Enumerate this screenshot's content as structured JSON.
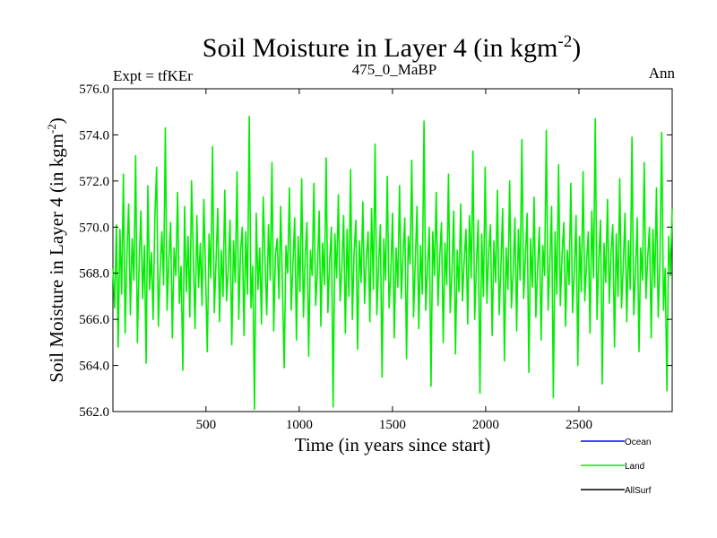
{
  "header": {
    "title_main": "Soil Moisture in Layer 4 (in kgm",
    "title_sup": "-2",
    "title_close": ")",
    "left_label": "Expt = tfKEr",
    "center_label": "475_0_MaBP",
    "right_label": "Ann"
  },
  "chart_data": {
    "type": "line",
    "xlabel": "Time (in years since start)",
    "ylabel_main": "Soil Moisture in Layer 4 (in kgm",
    "ylabel_sup": "-2",
    "ylabel_close": ")",
    "xlim": [
      1,
      3000
    ],
    "ylim": [
      562.0,
      576.0
    ],
    "x_ticks": [
      500,
      1000,
      1500,
      2000,
      2500
    ],
    "x_tick_labels": [
      "500",
      "1000",
      "1500",
      "2000",
      "2500"
    ],
    "y_ticks": [
      562,
      564,
      566,
      568,
      570,
      572,
      574,
      576
    ],
    "y_tick_labels": [
      "562.0",
      "564.0",
      "566.0",
      "568.0",
      "570.0",
      "572.0",
      "574.0",
      "576.0"
    ],
    "legend_position": "bottom-right, outside plot",
    "series": [
      {
        "name": "Ocean",
        "color": "#0000ff",
        "values": []
      },
      {
        "name": "Land",
        "color": "#00ee00",
        "x_start": 1,
        "x_end": 3000,
        "values": [
          568.2,
          566.5,
          570.1,
          564.8,
          569.9,
          567.1,
          572.3,
          565.4,
          568.8,
          571.0,
          566.2,
          569.5,
          567.7,
          573.1,
          565.0,
          568.4,
          570.7,
          566.9,
          569.2,
          564.1,
          571.8,
          567.3,
          568.9,
          566.0,
          570.4,
          572.6,
          565.7,
          568.1,
          569.8,
          567.5,
          574.3,
          566.4,
          568.6,
          570.2,
          565.2,
          569.1,
          567.9,
          571.5,
          566.7,
          568.3,
          563.8,
          570.9,
          567.2,
          569.6,
          566.1,
          572.0,
          568.7,
          565.6,
          570.5,
          567.4,
          569.3,
          566.6,
          571.2,
          568.0,
          564.6,
          569.7,
          567.8,
          573.5,
          566.3,
          568.5,
          570.8,
          565.9,
          569.0,
          567.0,
          571.6,
          566.8,
          568.2,
          570.3,
          564.9,
          569.4,
          567.6,
          572.4,
          566.0,
          568.9,
          570.0,
          565.3,
          569.8,
          567.1,
          574.8,
          566.5,
          568.3,
          562.1,
          570.6,
          567.3,
          569.1,
          565.8,
          571.3,
          568.6,
          566.2,
          570.1,
          567.7,
          572.8,
          565.5,
          568.8,
          569.5,
          566.9,
          570.9,
          567.4,
          563.9,
          569.2,
          568.0,
          571.7,
          566.4,
          568.4,
          570.4,
          565.1,
          569.6,
          567.2,
          572.1,
          566.1,
          568.7,
          570.2,
          564.4,
          569.0,
          567.9,
          571.9,
          566.6,
          568.1,
          570.7,
          565.7,
          569.3,
          567.5,
          573.0,
          566.3,
          568.5,
          570.0,
          562.2,
          569.7,
          567.8,
          571.4,
          566.8,
          568.2,
          570.5,
          565.4,
          569.9,
          567.0,
          572.5,
          566.0,
          568.9,
          570.3,
          564.7,
          569.4,
          567.6,
          571.1,
          566.7,
          568.6,
          569.8,
          565.9,
          570.8,
          567.3,
          573.6,
          566.2,
          568.3,
          570.1,
          563.5,
          569.5,
          567.7,
          572.2,
          566.5,
          568.0,
          570.6,
          565.2,
          569.1,
          567.4,
          571.8,
          566.9,
          568.8,
          570.4,
          564.3,
          569.6,
          568.4,
          572.9,
          566.1,
          568.5,
          570.9,
          565.6,
          569.2,
          567.1,
          574.6,
          566.4,
          568.2,
          570.0,
          563.1,
          569.8,
          567.9,
          571.5,
          566.6,
          568.7,
          570.2,
          565.0,
          569.3,
          567.5,
          572.3,
          566.3,
          568.1,
          570.7,
          564.5,
          569.0,
          567.2,
          571.0,
          566.8,
          568.6,
          569.9,
          565.8,
          570.5,
          567.8,
          573.3,
          566.0,
          568.4,
          570.3,
          562.8,
          569.7,
          567.0,
          572.6,
          566.7,
          568.9,
          570.1,
          565.3,
          569.4,
          567.6,
          571.6,
          566.2,
          568.3,
          570.8,
          564.2,
          569.1,
          567.3,
          572.0,
          566.5,
          568.0,
          570.4,
          565.5,
          569.9,
          567.7,
          573.8,
          566.9,
          568.7,
          570.6,
          563.7,
          569.5,
          567.4,
          571.3,
          566.1,
          568.2,
          570.0,
          565.1,
          569.2,
          567.9,
          574.2,
          566.4,
          568.5,
          570.9,
          562.6,
          569.8,
          567.1,
          572.7,
          566.6,
          568.8,
          570.2,
          565.7,
          569.0,
          567.5,
          571.9,
          566.3,
          568.1,
          570.5,
          564.0,
          569.6,
          567.2,
          572.4,
          566.8,
          568.4,
          569.8,
          565.4,
          570.7,
          567.8,
          574.7,
          566.0,
          568.6,
          570.3,
          563.2,
          569.3,
          567.6,
          571.2,
          566.7,
          568.9,
          570.1,
          564.8,
          569.7,
          567.0,
          572.1,
          566.5,
          568.3,
          570.6,
          565.9,
          569.4,
          567.3,
          573.9,
          566.2,
          568.0,
          570.4,
          564.6,
          569.1,
          567.7,
          572.8,
          566.9,
          568.7,
          570.0,
          565.2,
          569.9,
          567.4,
          571.7,
          566.1,
          568.5,
          574.1,
          566.4,
          568.2,
          562.9,
          569.6,
          567.9,
          570.8
        ]
      },
      {
        "name": "AllSurf",
        "color": "#000000",
        "values": []
      }
    ]
  }
}
